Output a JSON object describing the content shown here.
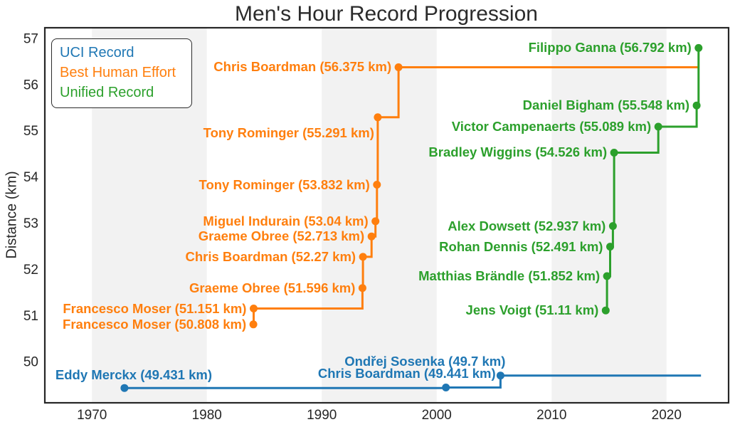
{
  "title": "Men's Hour Record Progression",
  "axes": {
    "y_label": "Distance (km)",
    "x_ticks": [
      1970,
      1980,
      1990,
      2000,
      2010,
      2020
    ],
    "y_ticks": [
      50,
      51,
      52,
      53,
      54,
      55,
      56,
      57
    ]
  },
  "colors": {
    "spine": "#262626",
    "tick_text": "#262626",
    "title_text": "#2b2b2b",
    "band": "#f2f2f2",
    "uci": "#1f77b4",
    "best_human_effort": "#ff7f0e",
    "unified": "#2ca02c"
  },
  "legend": {
    "items": [
      {
        "label": "UCI Record",
        "color": "#1f77b4"
      },
      {
        "label": "Best Human Effort",
        "color": "#ff7f0e"
      },
      {
        "label": "Unified Record",
        "color": "#2ca02c"
      }
    ]
  },
  "chart_data": {
    "type": "line",
    "step": "post",
    "title": "Men's Hour Record Progression",
    "xlabel": "",
    "ylabel": "Distance (km)",
    "xlim": [
      1965.9,
      2025.4
    ],
    "ylim": [
      49.11,
      57.23
    ],
    "grid": false,
    "legend_position": "upper left",
    "background_bands": {
      "color": "#f2f2f2",
      "spans": [
        [
          1970,
          1980
        ],
        [
          1990,
          2000
        ],
        [
          2010,
          2020
        ]
      ]
    },
    "series": [
      {
        "name": "UCI Record",
        "color": "#1f77b4",
        "extend_to": 2023.0,
        "points": [
          {
            "rider": "Eddy Merckx",
            "year": 1972.83,
            "km": 49.431,
            "label": "Eddy Merckx (49.431 km)",
            "label_anchor": "left",
            "label_dx": -97,
            "label_dy": -18
          },
          {
            "rider": "Chris Boardman",
            "year": 2000.8,
            "km": 49.441,
            "label": "Chris Boardman (49.441 km)",
            "label_anchor": "right",
            "label_dx": 70,
            "label_dy": -20
          },
          {
            "rider": "Ondřej Sosenka",
            "year": 2005.55,
            "km": 49.7,
            "label": "Ondřej Sosenka (49.7 km)",
            "label_anchor": "right",
            "label_dx": 7,
            "label_dy": -20
          }
        ]
      },
      {
        "name": "Best Human Effort",
        "color": "#ff7f0e",
        "extend_to": 2022.79,
        "points": [
          {
            "rider": "Francesco Moser",
            "year": 1984.05,
            "km": 50.808,
            "label": "Francesco Moser (50.808 km)"
          },
          {
            "rider": "Francesco Moser",
            "year": 1984.07,
            "km": 51.151,
            "label": "Francesco Moser (51.151 km)"
          },
          {
            "rider": "Graeme Obree",
            "year": 1993.54,
            "km": 51.596,
            "label": "Graeme Obree (51.596 km)"
          },
          {
            "rider": "Chris Boardman",
            "year": 1993.58,
            "km": 52.27,
            "label": "Chris Boardman (52.27 km)"
          },
          {
            "rider": "Graeme Obree",
            "year": 1994.33,
            "km": 52.713,
            "label": "Graeme Obree (52.713 km)"
          },
          {
            "rider": "Miguel Indurain",
            "year": 1994.67,
            "km": 53.04,
            "label": "Miguel Indurain (53.04 km)"
          },
          {
            "rider": "Tony Rominger",
            "year": 1994.8,
            "km": 53.832,
            "label": "Tony Rominger (53.832 km)"
          },
          {
            "rider": "Tony Rominger",
            "year": 1994.87,
            "km": 55.291,
            "label": "Tony Rominger (55.291 km)",
            "label_dx": -5,
            "label_dy": 22
          },
          {
            "rider": "Chris Boardman",
            "year": 1996.68,
            "km": 56.375,
            "label": "Chris Boardman (56.375 km)"
          }
        ]
      },
      {
        "name": "Unified Record",
        "color": "#2ca02c",
        "extend_to": null,
        "points": [
          {
            "rider": "Jens Voigt",
            "year": 2014.71,
            "km": 51.11,
            "label": "Jens Voigt (51.11 km)"
          },
          {
            "rider": "Matthias Brändle",
            "year": 2014.82,
            "km": 51.852,
            "label": "Matthias Brändle (51.852 km)"
          },
          {
            "rider": "Rohan Dennis",
            "year": 2015.09,
            "km": 52.491,
            "label": "Rohan Dennis (52.491 km)"
          },
          {
            "rider": "Alex Dowsett",
            "year": 2015.33,
            "km": 52.937,
            "label": "Alex Dowsett (52.937 km)"
          },
          {
            "rider": "Bradley Wiggins",
            "year": 2015.44,
            "km": 54.526,
            "label": "Bradley Wiggins (54.526 km)"
          },
          {
            "rider": "Victor Campenaerts",
            "year": 2019.28,
            "km": 55.089,
            "label": "Victor Campenaerts (55.089 km)"
          },
          {
            "rider": "Daniel Bigham",
            "year": 2022.62,
            "km": 55.548,
            "label": "Daniel Bigham (55.548 km)"
          },
          {
            "rider": "Filippo Ganna",
            "year": 2022.79,
            "km": 56.792,
            "label": "Filippo Ganna (56.792 km)"
          }
        ]
      }
    ]
  }
}
